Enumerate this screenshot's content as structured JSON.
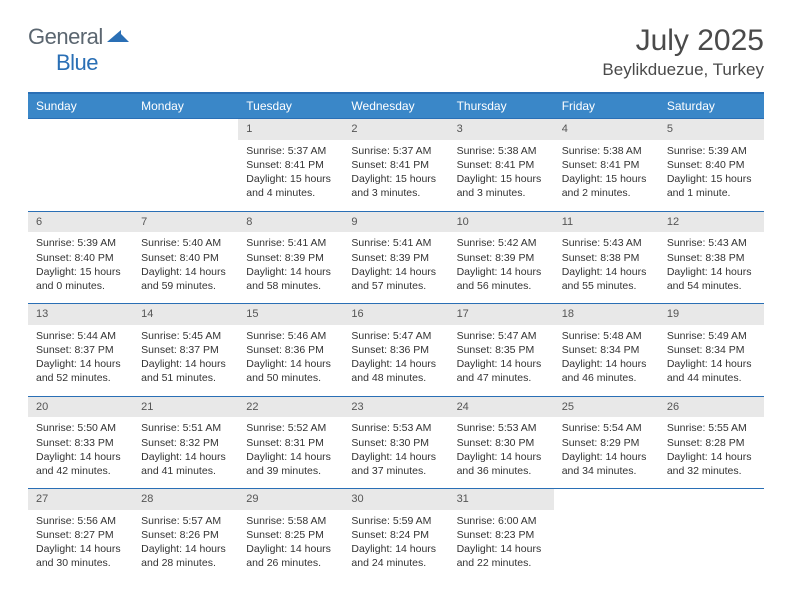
{
  "logo": {
    "word1": "General",
    "word2": "Blue"
  },
  "title": "July 2025",
  "location": "Beylikduezue, Turkey",
  "columns": [
    "Sunday",
    "Monday",
    "Tuesday",
    "Wednesday",
    "Thursday",
    "Friday",
    "Saturday"
  ],
  "colors": {
    "header_bg": "#3a87c8",
    "header_border": "#2a6fb5",
    "daynum_bg": "#e8e8e8",
    "text": "#333333",
    "logo_gray": "#5b6670",
    "logo_blue": "#2a6fb5"
  },
  "typography": {
    "title_fontsize": 30,
    "location_fontsize": 17,
    "header_fontsize": 12,
    "cell_fontsize": 10.5,
    "daynum_fontsize": 11
  },
  "weeks": [
    [
      null,
      null,
      {
        "n": "1",
        "sr": "5:37 AM",
        "ss": "8:41 PM",
        "dl": "15 hours and 4 minutes."
      },
      {
        "n": "2",
        "sr": "5:37 AM",
        "ss": "8:41 PM",
        "dl": "15 hours and 3 minutes."
      },
      {
        "n": "3",
        "sr": "5:38 AM",
        "ss": "8:41 PM",
        "dl": "15 hours and 3 minutes."
      },
      {
        "n": "4",
        "sr": "5:38 AM",
        "ss": "8:41 PM",
        "dl": "15 hours and 2 minutes."
      },
      {
        "n": "5",
        "sr": "5:39 AM",
        "ss": "8:40 PM",
        "dl": "15 hours and 1 minute."
      }
    ],
    [
      {
        "n": "6",
        "sr": "5:39 AM",
        "ss": "8:40 PM",
        "dl": "15 hours and 0 minutes."
      },
      {
        "n": "7",
        "sr": "5:40 AM",
        "ss": "8:40 PM",
        "dl": "14 hours and 59 minutes."
      },
      {
        "n": "8",
        "sr": "5:41 AM",
        "ss": "8:39 PM",
        "dl": "14 hours and 58 minutes."
      },
      {
        "n": "9",
        "sr": "5:41 AM",
        "ss": "8:39 PM",
        "dl": "14 hours and 57 minutes."
      },
      {
        "n": "10",
        "sr": "5:42 AM",
        "ss": "8:39 PM",
        "dl": "14 hours and 56 minutes."
      },
      {
        "n": "11",
        "sr": "5:43 AM",
        "ss": "8:38 PM",
        "dl": "14 hours and 55 minutes."
      },
      {
        "n": "12",
        "sr": "5:43 AM",
        "ss": "8:38 PM",
        "dl": "14 hours and 54 minutes."
      }
    ],
    [
      {
        "n": "13",
        "sr": "5:44 AM",
        "ss": "8:37 PM",
        "dl": "14 hours and 52 minutes."
      },
      {
        "n": "14",
        "sr": "5:45 AM",
        "ss": "8:37 PM",
        "dl": "14 hours and 51 minutes."
      },
      {
        "n": "15",
        "sr": "5:46 AM",
        "ss": "8:36 PM",
        "dl": "14 hours and 50 minutes."
      },
      {
        "n": "16",
        "sr": "5:47 AM",
        "ss": "8:36 PM",
        "dl": "14 hours and 48 minutes."
      },
      {
        "n": "17",
        "sr": "5:47 AM",
        "ss": "8:35 PM",
        "dl": "14 hours and 47 minutes."
      },
      {
        "n": "18",
        "sr": "5:48 AM",
        "ss": "8:34 PM",
        "dl": "14 hours and 46 minutes."
      },
      {
        "n": "19",
        "sr": "5:49 AM",
        "ss": "8:34 PM",
        "dl": "14 hours and 44 minutes."
      }
    ],
    [
      {
        "n": "20",
        "sr": "5:50 AM",
        "ss": "8:33 PM",
        "dl": "14 hours and 42 minutes."
      },
      {
        "n": "21",
        "sr": "5:51 AM",
        "ss": "8:32 PM",
        "dl": "14 hours and 41 minutes."
      },
      {
        "n": "22",
        "sr": "5:52 AM",
        "ss": "8:31 PM",
        "dl": "14 hours and 39 minutes."
      },
      {
        "n": "23",
        "sr": "5:53 AM",
        "ss": "8:30 PM",
        "dl": "14 hours and 37 minutes."
      },
      {
        "n": "24",
        "sr": "5:53 AM",
        "ss": "8:30 PM",
        "dl": "14 hours and 36 minutes."
      },
      {
        "n": "25",
        "sr": "5:54 AM",
        "ss": "8:29 PM",
        "dl": "14 hours and 34 minutes."
      },
      {
        "n": "26",
        "sr": "5:55 AM",
        "ss": "8:28 PM",
        "dl": "14 hours and 32 minutes."
      }
    ],
    [
      {
        "n": "27",
        "sr": "5:56 AM",
        "ss": "8:27 PM",
        "dl": "14 hours and 30 minutes."
      },
      {
        "n": "28",
        "sr": "5:57 AM",
        "ss": "8:26 PM",
        "dl": "14 hours and 28 minutes."
      },
      {
        "n": "29",
        "sr": "5:58 AM",
        "ss": "8:25 PM",
        "dl": "14 hours and 26 minutes."
      },
      {
        "n": "30",
        "sr": "5:59 AM",
        "ss": "8:24 PM",
        "dl": "14 hours and 24 minutes."
      },
      {
        "n": "31",
        "sr": "6:00 AM",
        "ss": "8:23 PM",
        "dl": "14 hours and 22 minutes."
      },
      null,
      null
    ]
  ],
  "labels": {
    "sunrise": "Sunrise: ",
    "sunset": "Sunset: ",
    "daylight": "Daylight: "
  }
}
